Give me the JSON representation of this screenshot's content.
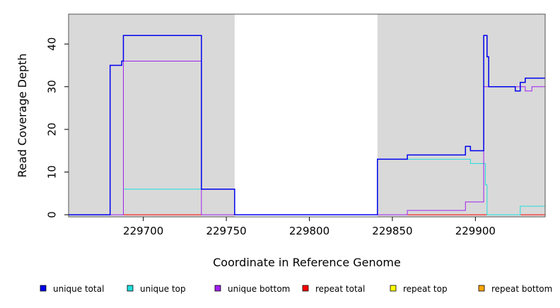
{
  "chart_data": {
    "type": "line",
    "step": true,
    "title": "",
    "xlabel": "Coordinate in Reference Genome",
    "ylabel": "Read Coverage Depth",
    "xlim": [
      229655,
      229942
    ],
    "ylim": [
      -0.5,
      47
    ],
    "xticks": [
      229700,
      229750,
      229800,
      229850,
      229900
    ],
    "yticks": [
      0,
      10,
      20,
      30,
      40
    ],
    "shaded_regions": [
      [
        229655,
        229755
      ],
      [
        229841,
        229942
      ]
    ],
    "shade_color": "#d9d9d9",
    "grid": false,
    "legend_position": "bottom",
    "series": [
      {
        "name": "unique total",
        "color": "#0000ee",
        "x": [
          229655,
          229680,
          229687,
          229688,
          229735,
          229755,
          229841,
          229859,
          229894,
          229897,
          229905,
          229907,
          229908,
          229924,
          229927,
          229930,
          229934,
          229942
        ],
        "y": [
          0,
          35,
          36,
          42,
          6,
          0,
          13,
          14,
          16,
          15,
          42,
          37,
          30,
          29,
          31,
          32,
          32,
          32
        ]
      },
      {
        "name": "unique top",
        "color": "#22dddd",
        "x": [
          229655,
          229688,
          229735,
          229755,
          229841,
          229859,
          229897,
          229906,
          229907,
          229908,
          229927,
          229942
        ],
        "y": [
          0,
          6,
          6,
          0,
          13,
          13,
          12,
          7,
          0,
          0,
          2,
          2
        ]
      },
      {
        "name": "unique bottom",
        "color": "#a020f0",
        "x": [
          229655,
          229688,
          229735,
          229859,
          229894,
          229905,
          229906,
          229930,
          229934,
          229942
        ],
        "y": [
          0,
          36,
          0,
          1,
          3,
          30,
          30,
          29,
          30,
          30
        ]
      },
      {
        "name": "repeat total",
        "color": "#ff0000",
        "x": [
          229655,
          229942
        ],
        "y": [
          0,
          0
        ]
      },
      {
        "name": "repeat top",
        "color": "#ffff00",
        "x": [
          229655,
          229942
        ],
        "y": [
          0,
          0
        ]
      },
      {
        "name": "repeat bottom",
        "color": "#ffa500",
        "x": [
          229655,
          229942
        ],
        "y": [
          0,
          0
        ]
      }
    ]
  },
  "legend": [
    {
      "label": "unique total",
      "color": "#0000ee"
    },
    {
      "label": "unique top",
      "color": "#22dddd"
    },
    {
      "label": "unique bottom",
      "color": "#a020f0"
    },
    {
      "label": "repeat total",
      "color": "#ff0000"
    },
    {
      "label": "repeat top",
      "color": "#ffff00"
    },
    {
      "label": "repeat bottom",
      "color": "#ffa500"
    }
  ]
}
